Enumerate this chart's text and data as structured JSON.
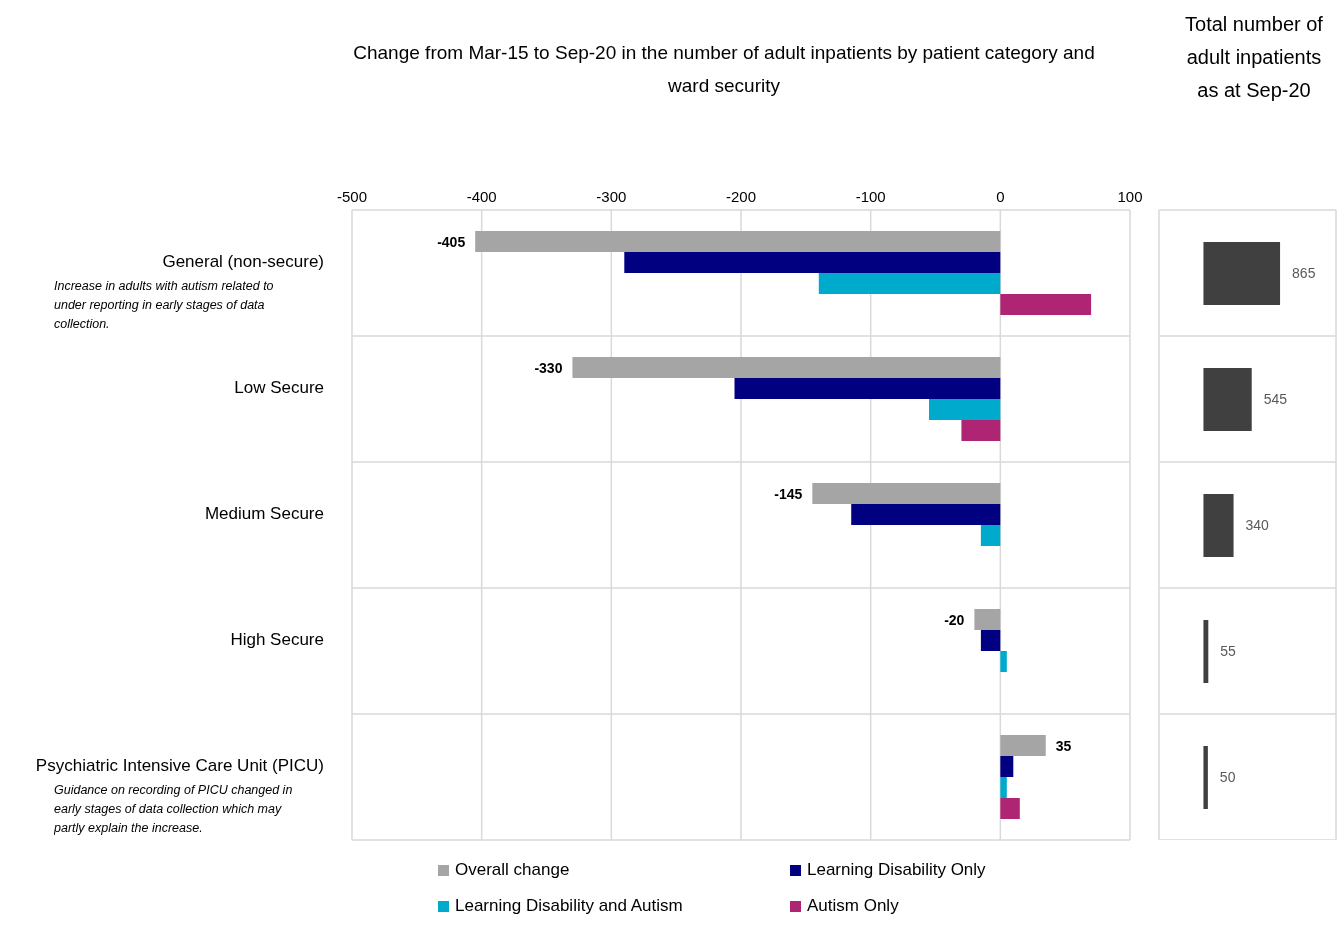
{
  "chart_data": [
    {
      "type": "bar",
      "orientation": "horizontal",
      "title": "Change from Mar-15 to Sep-20 in the number of adult inpatients by patient category and ward security",
      "categories": [
        "General (non-secure)",
        "Low Secure",
        "Medium Secure",
        "High Secure",
        "Psychiatric Intensive Care Unit (PICU)"
      ],
      "series": [
        {
          "name": "Overall change",
          "color": "#a5a5a5",
          "values": [
            -405,
            -330,
            -145,
            -20,
            35
          ],
          "value_labels": [
            "-405",
            "-330",
            "-145",
            "-20",
            "35"
          ]
        },
        {
          "name": "Learning Disability Only",
          "color": "#000080",
          "values": [
            -290,
            -205,
            -115,
            -15,
            10
          ]
        },
        {
          "name": "Learning Disability and Autism",
          "color": "#00aacc",
          "values": [
            -140,
            -55,
            -15,
            5,
            5
          ]
        },
        {
          "name": "Autism Only",
          "color": "#ae2573",
          "values": [
            70,
            -30,
            null,
            null,
            15
          ]
        }
      ],
      "xlim": [
        -500,
        100
      ],
      "xticks": [
        -500,
        -400,
        -300,
        -200,
        -100,
        0,
        100
      ],
      "grid": true,
      "legend": "bottom",
      "annotations": [
        "Increase in adults with autism related to under reporting in early stages of data collection.",
        "Guidance on recording of PICU changed in early stages of data collection which may partly explain the increase."
      ]
    },
    {
      "type": "bar",
      "orientation": "horizontal",
      "title": "Total number of adult inpatients as at Sep-20",
      "categories": [
        null,
        null,
        null,
        null,
        null
      ],
      "values": [
        865,
        545,
        340,
        55,
        50
      ],
      "color": "#404040",
      "data_labels": true,
      "grid": "y"
    }
  ]
}
